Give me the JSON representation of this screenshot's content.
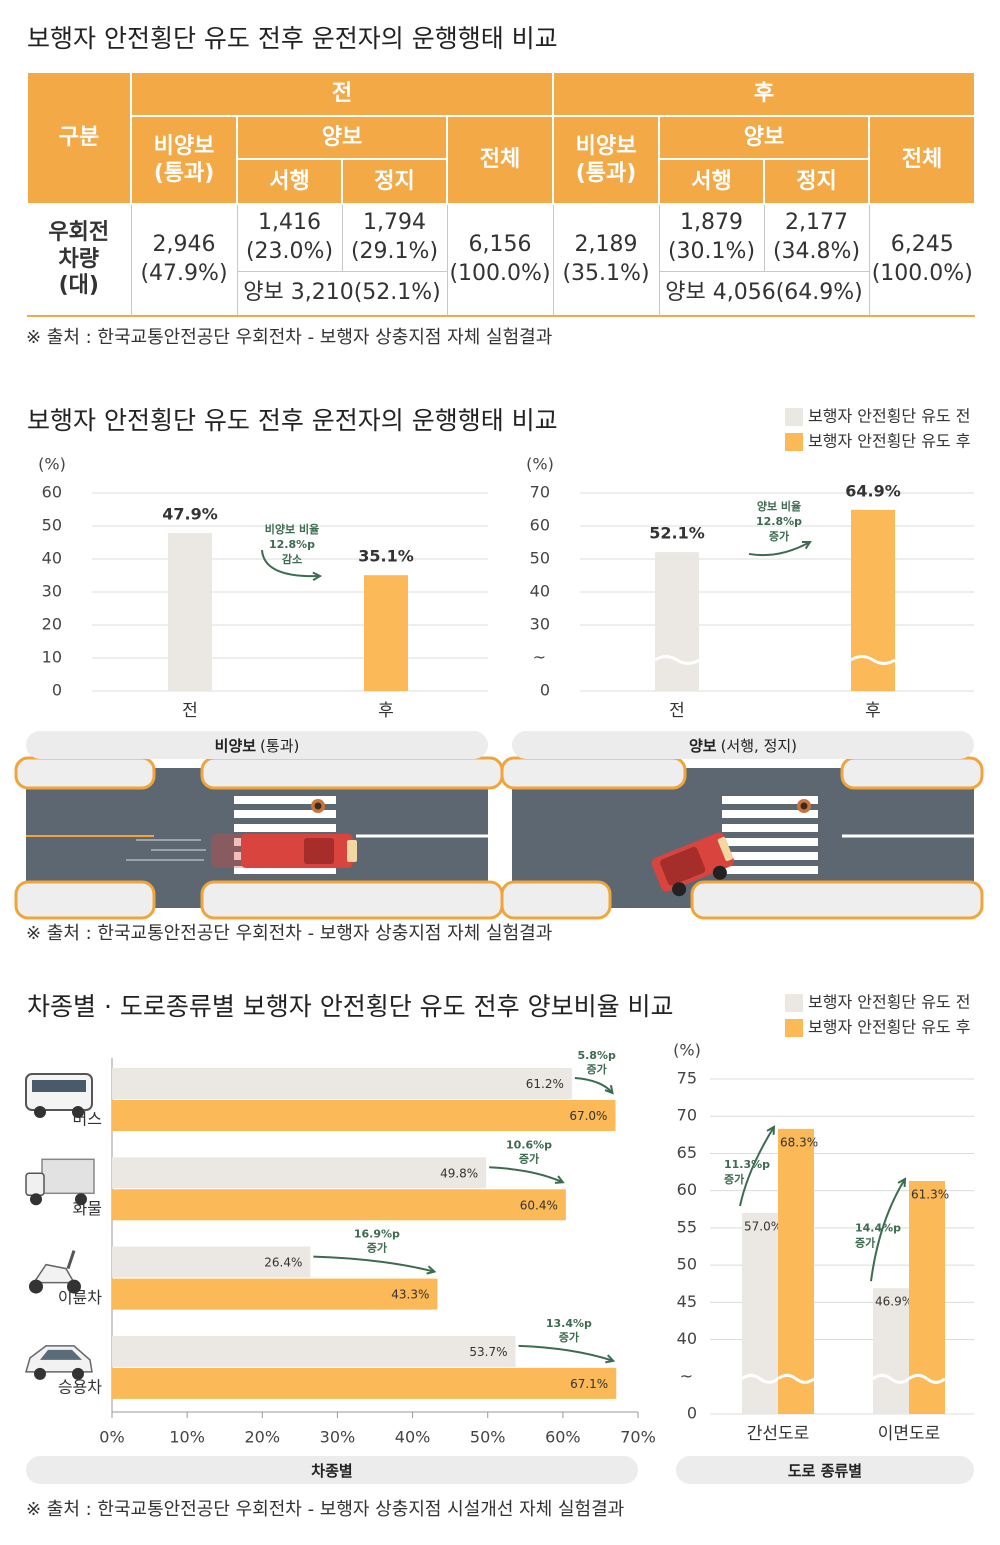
{
  "table": {
    "title": "보행자 안전횡단 유도 전후 운전자의 운행행태 비교",
    "header": {
      "row_label": "구분",
      "groups": [
        {
          "name": "전",
          "non_yield": "비양보\n(통과)",
          "yield": "양보",
          "slow": "서행",
          "stop": "정지",
          "total": "전체"
        },
        {
          "name": "후",
          "non_yield": "비양보\n(통과)",
          "yield": "양보",
          "slow": "서행",
          "stop": "정지",
          "total": "전체"
        }
      ]
    },
    "row": {
      "label": "우회전\n차량\n(대)",
      "groups": [
        {
          "non_yield": "2,946\n(47.9%)",
          "slow": "1,416\n(23.0%)",
          "stop": "1,794\n(29.1%)",
          "yield_sum": "양보 3,210(52.1%)",
          "total": "6,156\n(100.0%)"
        },
        {
          "non_yield": "2,189\n(35.1%)",
          "slow": "1,879\n(30.1%)",
          "stop": "2,177\n(34.8%)",
          "yield_sum": "양보 4,056(64.9%)",
          "total": "6,245\n(100.0%)"
        }
      ]
    },
    "source": "※ 출처 : 한국교통안전공단 우회전차 - 보행자 상충지점 자체 실험결과"
  },
  "chart_data": [
    {
      "type": "bar",
      "title": "보행자 안전횡단 유도 전후 운전자의 운행행태 비교",
      "ylabel": "(%)",
      "categories": [
        "전",
        "후"
      ],
      "series": [
        {
          "name": "보행자 안전횡단 유도 전",
          "color": "#ebe8e4",
          "values": [
            47.9,
            null
          ],
          "value_labels": [
            "47.9%",
            null
          ]
        },
        {
          "name": "보행자 안전횡단 유도 후",
          "color": "#fbb957",
          "values": [
            null,
            35.1
          ],
          "value_labels": [
            null,
            "35.1%"
          ]
        }
      ],
      "ylim": [
        0,
        60
      ],
      "yticks": [
        0,
        10,
        20,
        30,
        40,
        50,
        60
      ],
      "grid": true,
      "annotation": [
        "비양보 비율",
        "12.8%p",
        "감소"
      ],
      "xlabel": "비양보",
      "xlabel_note": "(통과)"
    },
    {
      "type": "bar",
      "ylabel": "(%)",
      "categories": [
        "전",
        "후"
      ],
      "series": [
        {
          "color": "#ebe8e4",
          "values": [
            52.1,
            null
          ],
          "value_labels": [
            "52.1%",
            null
          ]
        },
        {
          "color": "#fbb957",
          "values": [
            null,
            64.9
          ],
          "value_labels": [
            null,
            "64.9%"
          ]
        }
      ],
      "ylim": [
        0,
        70
      ],
      "yticks": [
        0,
        30,
        40,
        50,
        60,
        70
      ],
      "ybreak": [
        0,
        30
      ],
      "break_label": "~",
      "grid": true,
      "annotation": [
        "양보 비율",
        "12.8%p",
        "증가"
      ],
      "xlabel": "양보",
      "xlabel_note": "(서행, 정지)",
      "source": "※ 출처 : 한국교통안전공단 우회전차 - 보행자 상충지점 자체 실험결과"
    },
    {
      "type": "hbar",
      "title": "차종별 · 도로종류별 보행자 안전횡단 유도 전후 양보비율 비교",
      "categories": [
        "버스",
        "화물",
        "이륜차",
        "승용차"
      ],
      "series": [
        {
          "name": "보행자 안전횡단 유도 전",
          "color": "#ebe8e4",
          "values": [
            61.2,
            49.8,
            26.4,
            53.7
          ],
          "value_labels": [
            "61.2%",
            "49.8%",
            "26.4%",
            "53.7%"
          ]
        },
        {
          "name": "보행자 안전횡단 유도 후",
          "color": "#fbb957",
          "values": [
            67.0,
            60.4,
            43.3,
            67.1
          ],
          "value_labels": [
            "67.0%",
            "60.4%",
            "43.3%",
            "67.1%"
          ]
        }
      ],
      "xlim": [
        0,
        70
      ],
      "xticks": [
        {
          "value": 0,
          "label": "0%"
        },
        {
          "value": 10,
          "label": "10%"
        },
        {
          "value": 20,
          "label": "20%"
        },
        {
          "value": 30,
          "label": "30%"
        },
        {
          "value": 40,
          "label": "40%"
        },
        {
          "value": 50,
          "label": "50%"
        },
        {
          "value": 60,
          "label": "60%"
        },
        {
          "value": 70,
          "label": "70%"
        }
      ],
      "annotations": [
        [
          "5.8%p",
          "증가"
        ],
        [
          "10.6%p",
          "증가"
        ],
        [
          "16.9%p",
          "증가"
        ],
        [
          "13.4%p",
          "증가"
        ]
      ],
      "xlabel": "차종별"
    },
    {
      "type": "bar",
      "ylabel": "(%)",
      "categories": [
        "간선도로",
        "이면도로"
      ],
      "series": [
        {
          "color": "#ebe8e4",
          "values": [
            57.0,
            46.9
          ],
          "value_labels": [
            "57.0%",
            "46.9%"
          ]
        },
        {
          "color": "#fbb957",
          "values": [
            68.3,
            61.3
          ],
          "value_labels": [
            "68.3%",
            "61.3%"
          ]
        }
      ],
      "ylim": [
        0,
        75
      ],
      "yticks": [
        0,
        40,
        45,
        50,
        55,
        60,
        65,
        70,
        75
      ],
      "ybreak": [
        0,
        40
      ],
      "break_label": "~",
      "grid": true,
      "annotations": [
        [
          "11.3%p",
          "증가"
        ],
        [
          "14.4%p",
          "증가"
        ]
      ],
      "xlabel": "도로 종류별",
      "source": "※ 출처 : 한국교통안전공단 우회전차 - 보행자 상충지점 시설개선 자체 실험결과"
    }
  ]
}
